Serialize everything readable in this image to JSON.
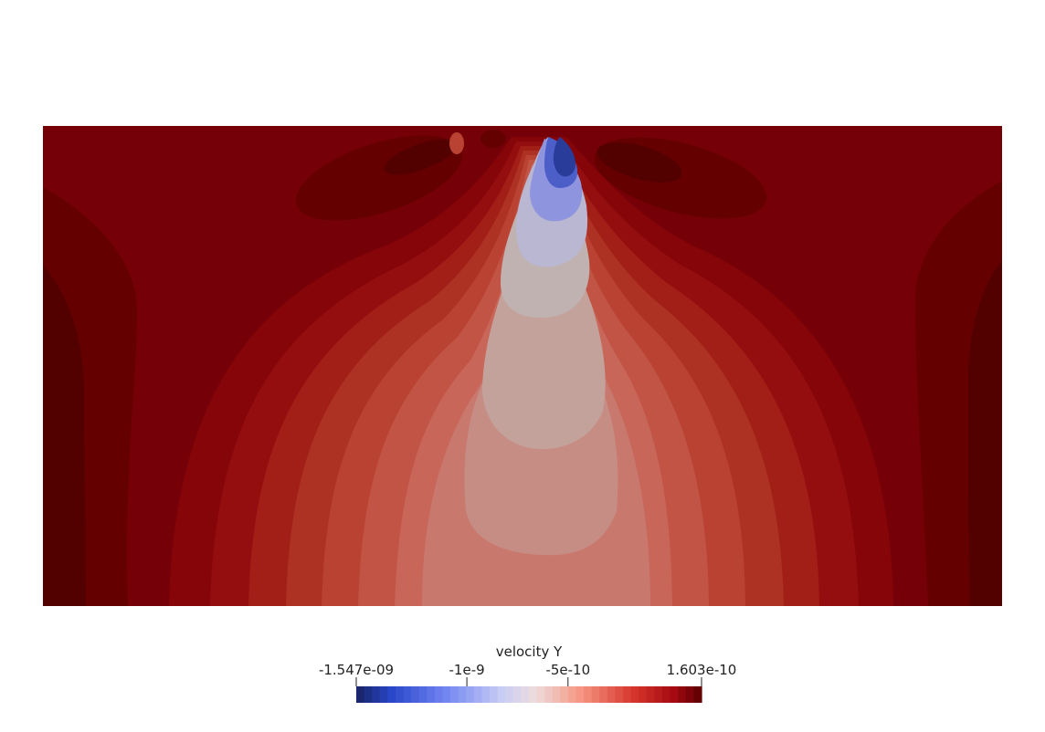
{
  "colorbar": {
    "title": "velocity Y",
    "range": [
      -1.547e-09,
      1.603e-10
    ],
    "ticks": [
      {
        "label": "-1.547e-09",
        "value": -1.547e-09
      },
      {
        "label": "-1e-9",
        "value": -1e-09
      },
      {
        "label": "-5e-10",
        "value": -5e-10
      },
      {
        "label": "1.603e-10",
        "value": 1.603e-10
      }
    ],
    "colormap": "Cool to Warm",
    "bands": 44
  },
  "field_colors": {
    "edge_darkest": "#520000",
    "outer_dark": "#640000",
    "background": "#760008",
    "ring_1": "#850509",
    "ring_2": "#940e10",
    "ring_3": "#a11f17",
    "ring_4": "#ae3224",
    "ring_5": "#b94233",
    "ring_6": "#c25445",
    "ring_7": "#c8665a",
    "ring_8": "#c9786e",
    "ring_9": "#c68d85",
    "ring_10": "#c4a29c",
    "ring_11": "#c0b2b0",
    "jet_light": "#b9b7d2",
    "jet_mid": "#8e94dd",
    "jet_deep": "#4c5ec8",
    "jet_core": "#2a3c9a"
  }
}
